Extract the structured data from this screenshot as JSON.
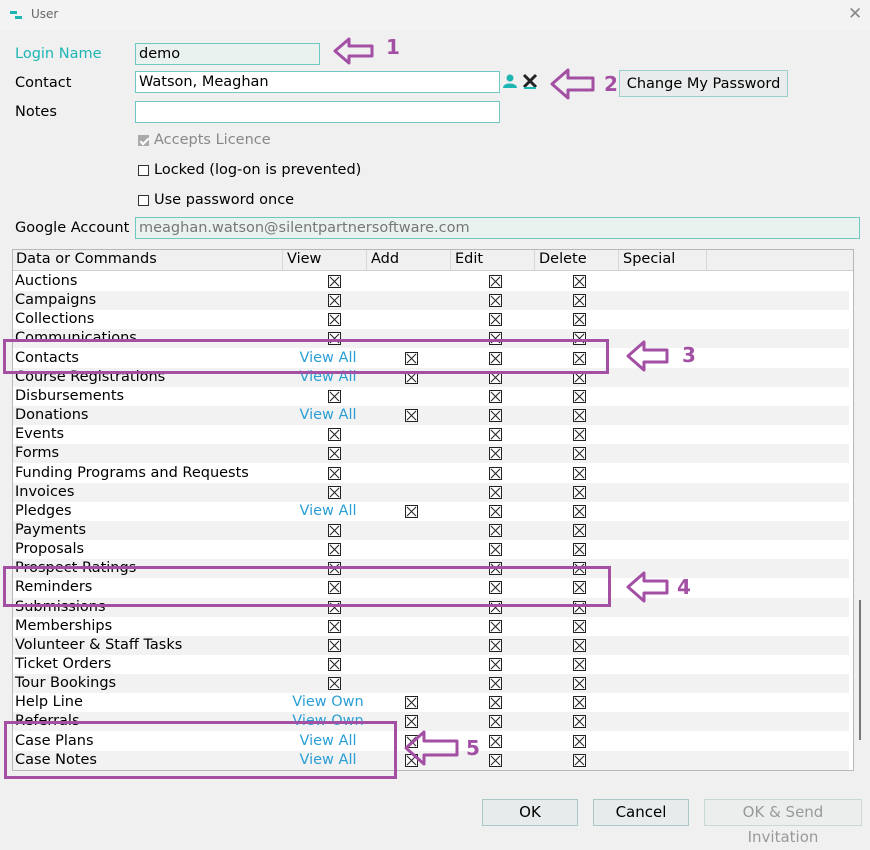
{
  "window": {
    "title": "User",
    "close_icon": "close-icon"
  },
  "form": {
    "login_name": {
      "label": "Login Name",
      "value": "demo"
    },
    "contact": {
      "label": "Contact",
      "value": "Watson, Meaghan"
    },
    "notes": {
      "label": "Notes",
      "value": ""
    },
    "accepts_licence": {
      "label": "Accepts Licence",
      "checked": true,
      "disabled": true
    },
    "locked": {
      "label": "Locked (log-on is prevented)",
      "checked": false
    },
    "use_password_once": {
      "label": "Use password once",
      "checked": false
    },
    "google_account": {
      "label": "Google Account",
      "value": "meaghan.watson@silentpartnersoftware.com"
    },
    "change_password_label": "Change My Password"
  },
  "grid": {
    "columns": [
      "Data or Commands",
      "View",
      "Add",
      "Edit",
      "Delete",
      "Special"
    ],
    "rows": [
      {
        "name": "Auctions",
        "view": "x",
        "add": "",
        "edit": "x",
        "delete": "x"
      },
      {
        "name": "Campaigns",
        "view": "x",
        "add": "",
        "edit": "x",
        "delete": "x"
      },
      {
        "name": "Collections",
        "view": "x",
        "add": "",
        "edit": "x",
        "delete": "x"
      },
      {
        "name": "Communications",
        "view": "x",
        "add": "",
        "edit": "x",
        "delete": "x"
      },
      {
        "name": "Contacts",
        "view": "View All",
        "add": "x",
        "edit": "x",
        "delete": "x"
      },
      {
        "name": "Course Registrations",
        "view": "View All",
        "add": "x",
        "edit": "x",
        "delete": "x"
      },
      {
        "name": "Disbursements",
        "view": "x",
        "add": "",
        "edit": "x",
        "delete": "x"
      },
      {
        "name": "Donations",
        "view": "View All",
        "add": "x",
        "edit": "x",
        "delete": "x"
      },
      {
        "name": "Events",
        "view": "x",
        "add": "",
        "edit": "x",
        "delete": "x"
      },
      {
        "name": "Forms",
        "view": "x",
        "add": "",
        "edit": "x",
        "delete": "x"
      },
      {
        "name": "Funding Programs and Requests",
        "view": "x",
        "add": "",
        "edit": "x",
        "delete": "x"
      },
      {
        "name": "Invoices",
        "view": "x",
        "add": "",
        "edit": "x",
        "delete": "x"
      },
      {
        "name": "Pledges",
        "view": "View All",
        "add": "x",
        "edit": "x",
        "delete": "x"
      },
      {
        "name": "Payments",
        "view": "x",
        "add": "",
        "edit": "x",
        "delete": "x"
      },
      {
        "name": "Proposals",
        "view": "x",
        "add": "",
        "edit": "x",
        "delete": "x"
      },
      {
        "name": "Prospect Ratings",
        "view": "x",
        "add": "",
        "edit": "x",
        "delete": "x"
      },
      {
        "name": "Reminders",
        "view": "x",
        "add": "",
        "edit": "x",
        "delete": "x"
      },
      {
        "name": "Submissions",
        "view": "x",
        "add": "",
        "edit": "x",
        "delete": "x"
      },
      {
        "name": "Memberships",
        "view": "x",
        "add": "",
        "edit": "x",
        "delete": "x"
      },
      {
        "name": "Volunteer & Staff Tasks",
        "view": "x",
        "add": "",
        "edit": "x",
        "delete": "x"
      },
      {
        "name": "Ticket Orders",
        "view": "x",
        "add": "",
        "edit": "x",
        "delete": "x"
      },
      {
        "name": "Tour Bookings",
        "view": "x",
        "add": "",
        "edit": "x",
        "delete": "x"
      },
      {
        "name": "Help Line",
        "view": "View Own",
        "add": "x",
        "edit": "x",
        "delete": "x"
      },
      {
        "name": "Referrals",
        "view": "View Own",
        "add": "x",
        "edit": "x",
        "delete": "x"
      },
      {
        "name": "Case Plans",
        "view": "View All",
        "add": "x",
        "edit": "x",
        "delete": "x"
      },
      {
        "name": "Case Notes",
        "view": "View All",
        "add": "x",
        "edit": "x",
        "delete": "x"
      }
    ]
  },
  "annotations": [
    "1",
    "2",
    "3",
    "4",
    "5"
  ],
  "buttons": {
    "ok": "OK",
    "cancel": "Cancel",
    "ok_send": "OK & Send Invitation"
  },
  "colors": {
    "accent": "#1eb5b5",
    "annotation": "#a24fa4",
    "link": "#2a9fd6"
  },
  "icons": {
    "contact_person": "person-icon",
    "clear_contact": "clear-x-icon",
    "arrow": "arrow-left-icon"
  }
}
